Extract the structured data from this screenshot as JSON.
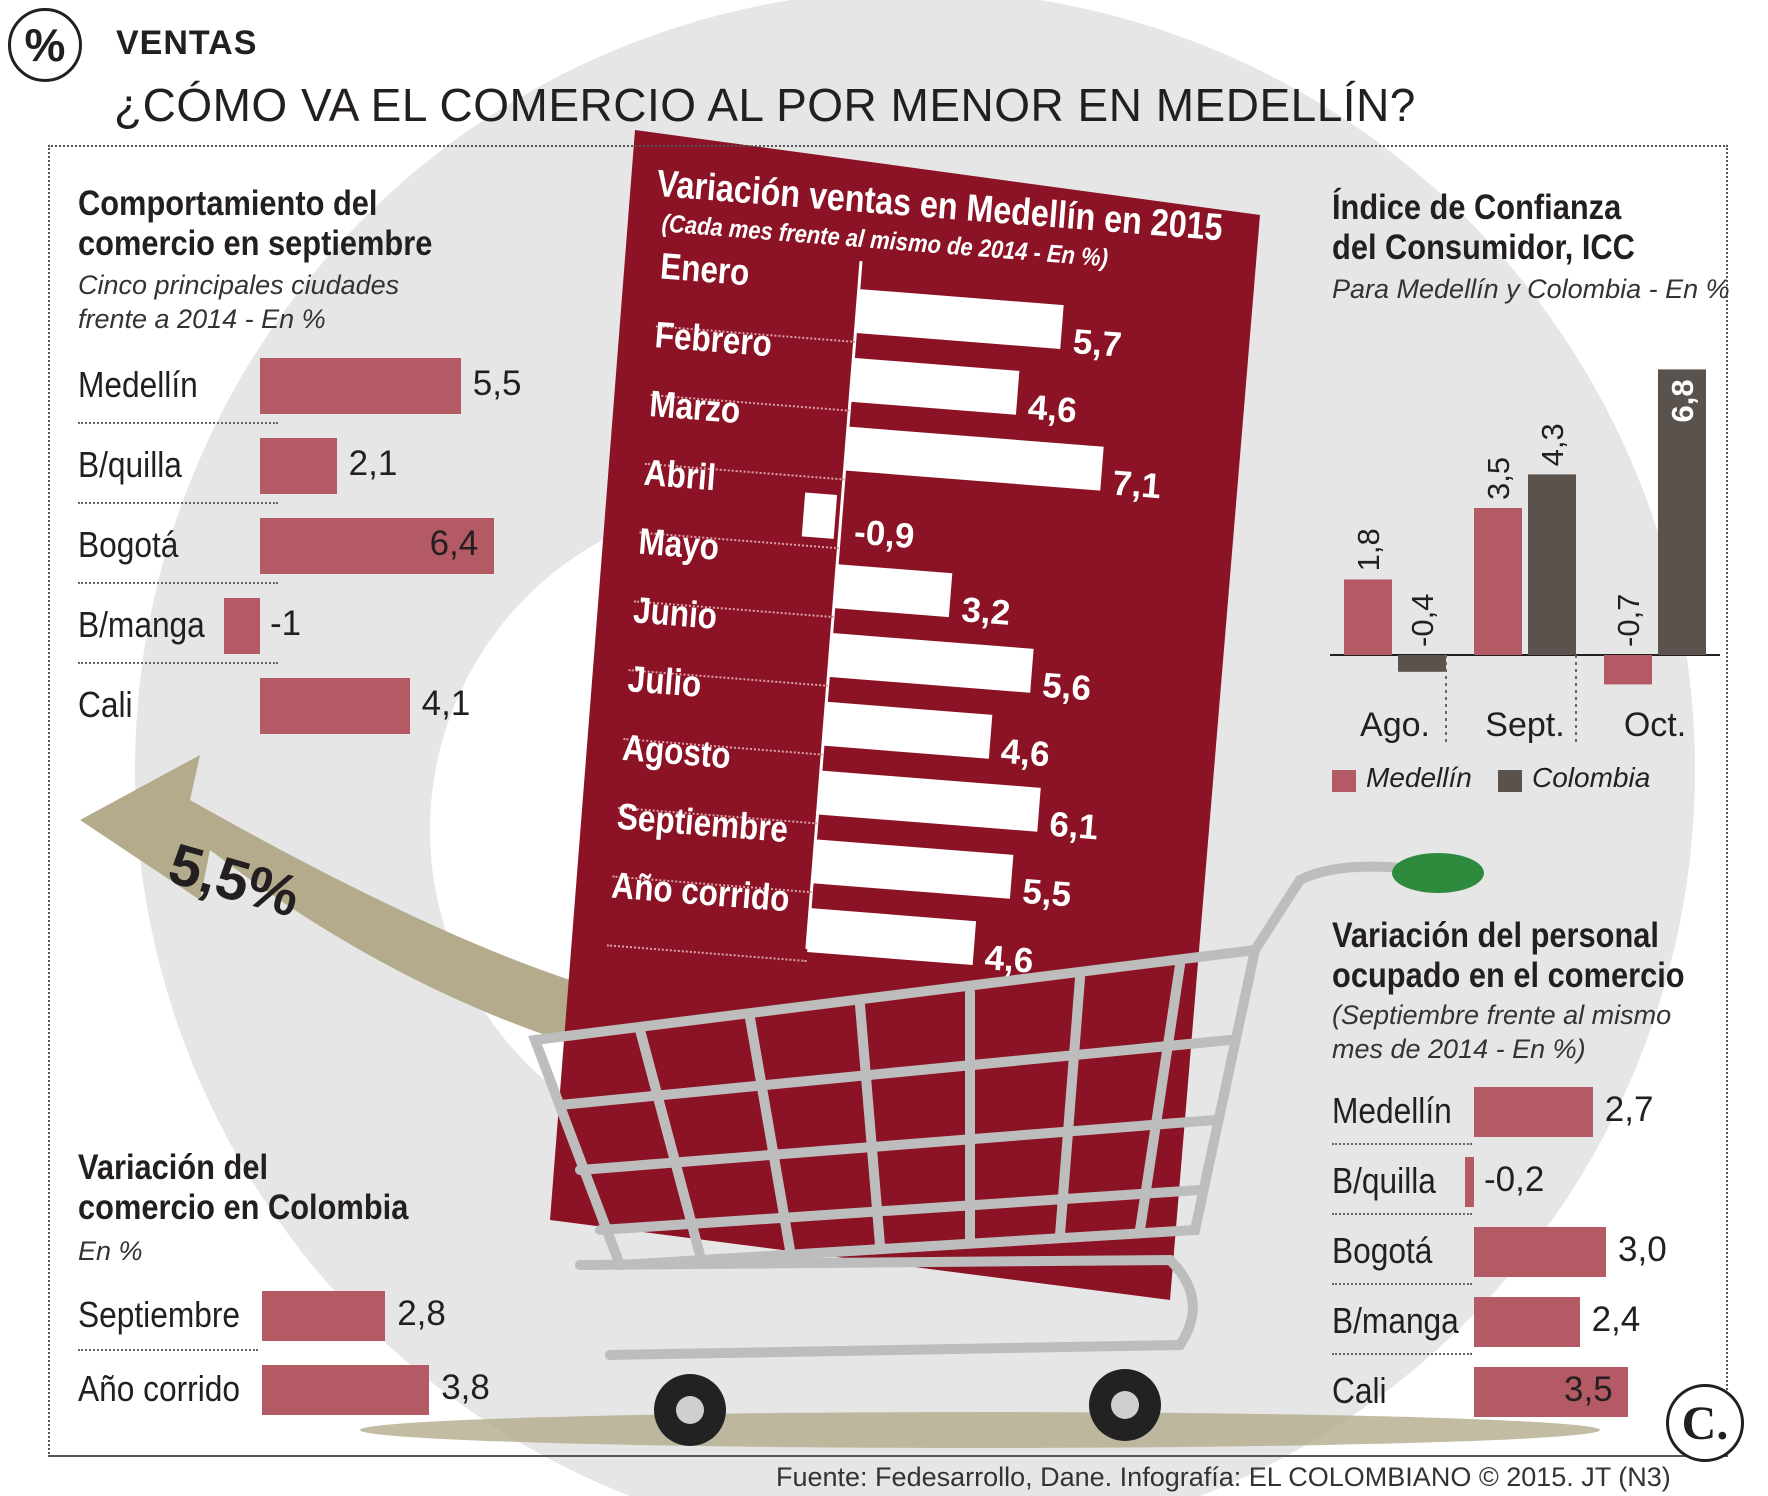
{
  "header": {
    "section": "VENTAS",
    "title": "¿CÓMO VA EL COMERCIO AL POR MENOR EN MEDELLÍN?",
    "highlight": "5,5%",
    "source": "Fuente: Fedesarrollo, Dane. Infografía: EL COLOMBIANO © 2015. JT (N3)",
    "logo_letter": "C."
  },
  "colors": {
    "medellin": "#b35a65",
    "colombia": "#5a534d",
    "wine": "#8c1325",
    "arrow": "#b3ab8c"
  },
  "chart_data": [
    {
      "type": "bar",
      "title": "Comportamiento del comercio en septiembre",
      "subtitle": "Cinco principales ciudades frente a 2014 - En %",
      "categories": [
        "Medellín",
        "B/quilla",
        "Bogotá",
        "B/manga",
        "Cali"
      ],
      "values": [
        5.5,
        2.1,
        6.4,
        -1,
        4.1
      ],
      "labels": [
        "5,5",
        "2,1",
        "6,4",
        "-1",
        "4,1"
      ]
    },
    {
      "type": "bar",
      "title": "Variación ventas en Medellín en 2015",
      "subtitle": "(Cada mes frente al mismo de 2014 - En %)",
      "categories": [
        "Enero",
        "Febrero",
        "Marzo",
        "Abril",
        "Mayo",
        "Junio",
        "Julio",
        "Agosto",
        "Septiembre",
        "Año corrido"
      ],
      "values": [
        5.7,
        4.6,
        7.1,
        -0.9,
        3.2,
        5.6,
        4.6,
        6.1,
        5.5,
        4.6
      ],
      "labels": [
        "5,7",
        "4,6",
        "7,1",
        "-0,9",
        "3,2",
        "5,6",
        "4,6",
        "6,1",
        "5,5",
        "4,6"
      ]
    },
    {
      "type": "bar",
      "title": "Índice de Confianza del Consumidor, ICC",
      "subtitle": "Para Medellín y Colombia - En %",
      "categories": [
        "Ago.",
        "Sept.",
        "Oct."
      ],
      "series": [
        {
          "name": "Medellín",
          "values": [
            1.8,
            3.5,
            -0.7
          ],
          "labels": [
            "1,8",
            "3,5",
            "-0,7"
          ]
        },
        {
          "name": "Colombia",
          "values": [
            -0.4,
            4.3,
            6.8
          ],
          "labels": [
            "-0,4",
            "4,3",
            "6,8"
          ]
        }
      ]
    },
    {
      "type": "bar",
      "title": "Variación del personal ocupado en el comercio",
      "subtitle": "(Septiembre frente al mismo mes de 2014 - En %)",
      "categories": [
        "Medellín",
        "B/quilla",
        "Bogotá",
        "B/manga",
        "Cali"
      ],
      "values": [
        2.7,
        -0.2,
        3.0,
        2.4,
        3.5
      ],
      "labels": [
        "2,7",
        "-0,2",
        "3,0",
        "2,4",
        "3,5"
      ]
    },
    {
      "type": "bar",
      "title": "Variación del comercio en Colombia",
      "subtitle": "En %",
      "categories": [
        "Septiembre",
        "Año corrido"
      ],
      "values": [
        2.8,
        3.8
      ],
      "labels": [
        "2,8",
        "3,8"
      ]
    }
  ]
}
